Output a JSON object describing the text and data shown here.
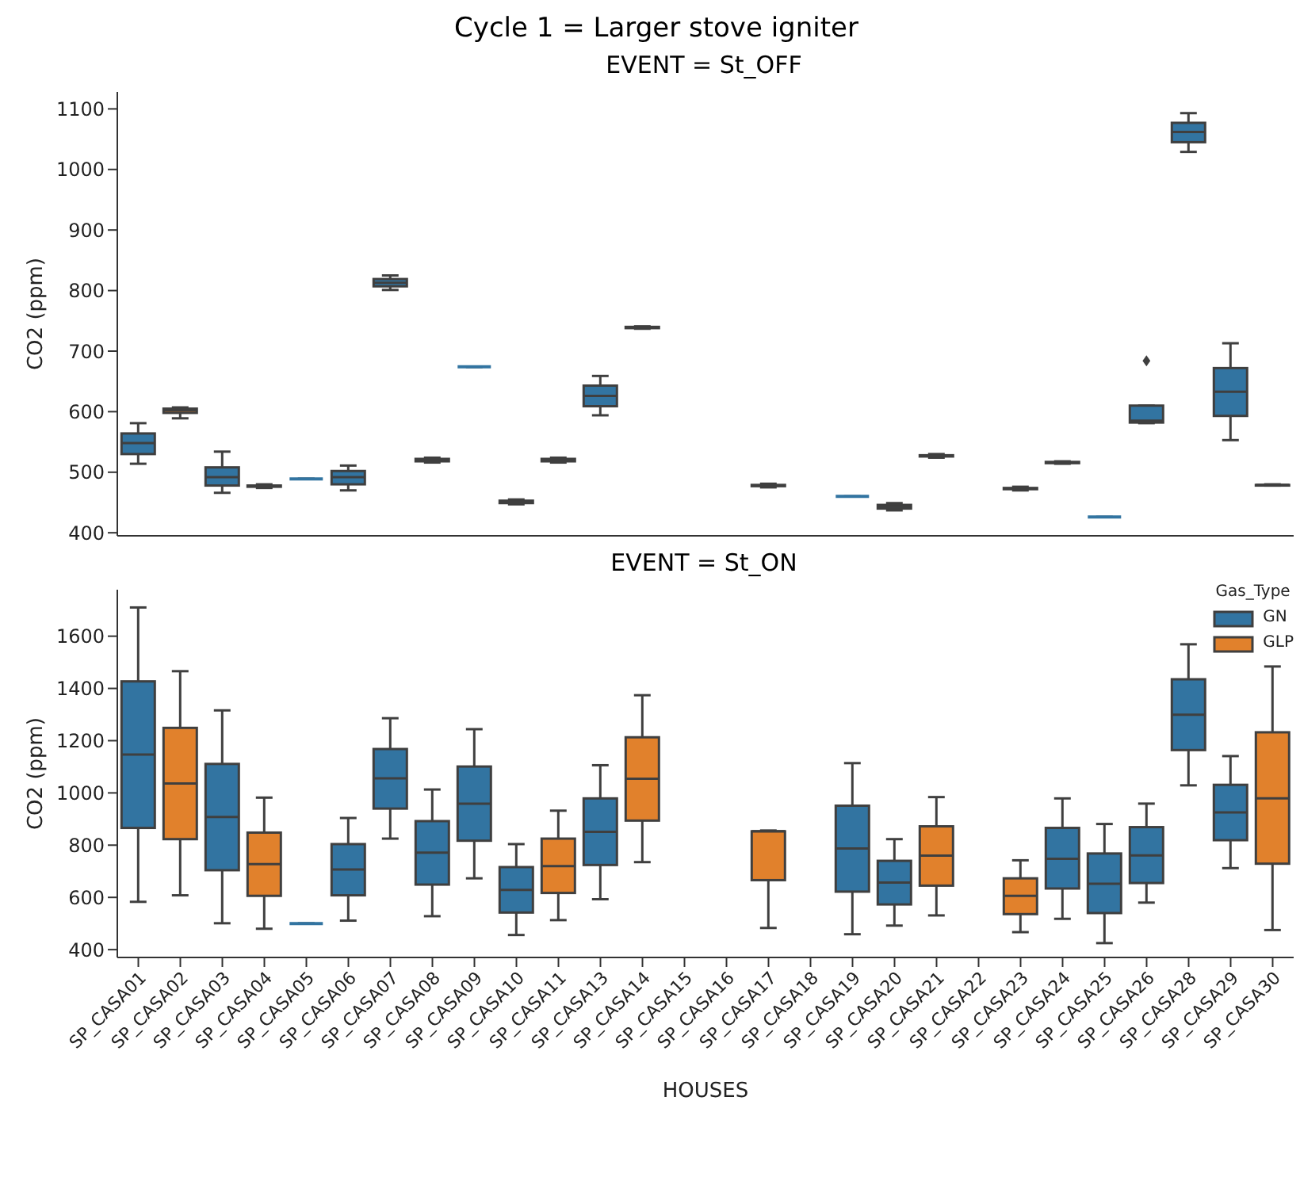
{
  "chart_data": [
    {
      "type": "box",
      "title": "Cycle 1 = Larger stove igniter",
      "subtitle": "EVENT = St_OFF",
      "ylabel": "CO2 (ppm)",
      "categories": [
        null,
        null,
        null,
        null,
        null,
        null,
        null,
        null,
        null,
        null,
        null,
        null,
        null,
        null,
        null,
        null,
        null,
        null,
        null,
        null,
        null,
        null,
        null,
        null,
        null,
        null,
        null,
        null
      ],
      "ylim": [
        395,
        1128
      ],
      "yticks": [
        400,
        500,
        600,
        700,
        800,
        900,
        1000,
        1100
      ],
      "tick_labels": "y",
      "legend": false,
      "grid": false,
      "marker": "diamond",
      "series": [
        {
          "color": "#3274a1",
          "boxes": [
            {
              "low": 514,
              "q1": 530,
              "median": 548,
              "q3": 564,
              "high": 581
            },
            null,
            {
              "low": 466,
              "q1": 478,
              "median": 492,
              "q3": 508,
              "high": 534
            },
            null,
            {
              "low": 489,
              "q1": 489,
              "median": 489,
              "q3": 489,
              "high": 489
            },
            {
              "low": 470,
              "q1": 480,
              "median": 492,
              "q3": 502,
              "high": 511
            },
            {
              "low": 801,
              "q1": 807,
              "median": 813,
              "q3": 819,
              "high": 825
            },
            {
              "low": 516,
              "q1": 518,
              "median": 520,
              "q3": 522,
              "high": 524
            },
            {
              "low": 674,
              "q1": 674,
              "median": 674,
              "q3": 674,
              "high": 674
            },
            {
              "low": 447,
              "q1": 449,
              "median": 451,
              "q3": 453,
              "high": 455
            },
            null,
            {
              "low": 594,
              "q1": 609,
              "median": 626,
              "q3": 643,
              "high": 659
            },
            null,
            null,
            null,
            null,
            null,
            {
              "low": 460,
              "q1": 460,
              "median": 460,
              "q3": 460,
              "high": 460
            },
            {
              "low": 437,
              "q1": 440,
              "median": 443,
              "q3": 446,
              "high": 449
            },
            null,
            null,
            null,
            {
              "low": 514,
              "q1": 515,
              "median": 516,
              "q3": 517,
              "high": 518
            },
            {
              "low": 426,
              "q1": 426,
              "median": 426,
              "q3": 426,
              "high": 426
            },
            {
              "low": 581,
              "q1": 582,
              "median": 585,
              "q3": 610,
              "high": 610,
              "outliers": [
                684
              ]
            },
            {
              "low": 1029,
              "q1": 1045,
              "median": 1062,
              "q3": 1077,
              "high": 1093
            },
            {
              "low": 553,
              "q1": 593,
              "median": 633,
              "q3": 672,
              "high": 713
            },
            null
          ]
        },
        {
          "color": "#e1812c",
          "boxes": [
            null,
            {
              "low": 589,
              "q1": 598,
              "median": 602,
              "q3": 605,
              "high": 607
            },
            null,
            {
              "low": 474,
              "q1": 476,
              "median": 477,
              "q3": 478,
              "high": 480
            },
            null,
            null,
            null,
            null,
            null,
            null,
            {
              "low": 516,
              "q1": 518,
              "median": 520,
              "q3": 522,
              "high": 524
            },
            null,
            {
              "low": 737,
              "q1": 738,
              "median": 739,
              "q3": 740,
              "high": 741
            },
            null,
            null,
            {
              "low": 475,
              "q1": 477,
              "median": 478,
              "q3": 479,
              "high": 481
            },
            null,
            null,
            null,
            {
              "low": 524,
              "q1": 526,
              "median": 527,
              "q3": 528,
              "high": 530
            },
            null,
            {
              "low": 470,
              "q1": 472,
              "median": 473,
              "q3": 474,
              "high": 476
            },
            null,
            null,
            null,
            null,
            null,
            {
              "low": 478,
              "q1": 478,
              "median": 479,
              "q3": 479,
              "high": 480
            }
          ]
        }
      ]
    },
    {
      "type": "box",
      "title": "EVENT = St_ON",
      "xlabel": "HOUSES",
      "ylabel": "CO2 (ppm)",
      "legend_title": "Gas_Type",
      "categories": [
        "SP_CASA01",
        "SP_CASA02",
        "SP_CASA03",
        "SP_CASA04",
        "SP_CASA05",
        "SP_CASA06",
        "SP_CASA07",
        "SP_CASA08",
        "SP_CASA09",
        "SP_CASA10",
        "SP_CASA11",
        "SP_CASA13",
        "SP_CASA14",
        "SP_CASA15",
        "SP_CASA16",
        "SP_CASA17",
        "SP_CASA18",
        "SP_CASA19",
        "SP_CASA20",
        "SP_CASA21",
        "SP_CASA22",
        "SP_CASA23",
        "SP_CASA24",
        "SP_CASA25",
        "SP_CASA26",
        "SP_CASA28",
        "SP_CASA29",
        "SP_CASA30"
      ],
      "ylim": [
        370,
        1778
      ],
      "yticks": [
        400,
        600,
        800,
        1000,
        1200,
        1400,
        1600
      ],
      "legend": "top right",
      "grid": false,
      "series": [
        {
          "name": "GN",
          "color": "#3274a1",
          "boxes": [
            {
              "low": 583,
              "q1": 866,
              "median": 1147,
              "q3": 1427,
              "high": 1710
            },
            null,
            {
              "low": 501,
              "q1": 704,
              "median": 908,
              "q3": 1111,
              "high": 1316
            },
            null,
            {
              "low": 500,
              "q1": 500,
              "median": 500,
              "q3": 500,
              "high": 500
            },
            {
              "low": 511,
              "q1": 608,
              "median": 707,
              "q3": 804,
              "high": 904
            },
            {
              "low": 825,
              "q1": 940,
              "median": 1056,
              "q3": 1168,
              "high": 1286
            },
            {
              "low": 528,
              "q1": 649,
              "median": 771,
              "q3": 892,
              "high": 1013
            },
            {
              "low": 673,
              "q1": 817,
              "median": 959,
              "q3": 1101,
              "high": 1244
            },
            {
              "low": 456,
              "q1": 542,
              "median": 629,
              "q3": 716,
              "high": 804
            },
            null,
            {
              "low": 593,
              "q1": 724,
              "median": 851,
              "q3": 979,
              "high": 1106
            },
            null,
            null,
            null,
            null,
            null,
            {
              "low": 459,
              "q1": 622,
              "median": 787,
              "q3": 951,
              "high": 1114
            },
            {
              "low": 492,
              "q1": 573,
              "median": 657,
              "q3": 740,
              "high": 823
            },
            null,
            null,
            null,
            {
              "low": 518,
              "q1": 634,
              "median": 748,
              "q3": 866,
              "high": 979
            },
            {
              "low": 425,
              "q1": 540,
              "median": 652,
              "q3": 768,
              "high": 881
            },
            {
              "low": 580,
              "q1": 655,
              "median": 761,
              "q3": 869,
              "high": 959
            },
            {
              "low": 1029,
              "q1": 1164,
              "median": 1299,
              "q3": 1435,
              "high": 1569
            },
            {
              "low": 712,
              "q1": 819,
              "median": 925,
              "q3": 1031,
              "high": 1141
            },
            null
          ]
        },
        {
          "name": "GLP",
          "color": "#e1812c",
          "boxes": [
            null,
            {
              "low": 608,
              "q1": 823,
              "median": 1036,
              "q3": 1249,
              "high": 1466
            },
            null,
            {
              "low": 480,
              "q1": 606,
              "median": 727,
              "q3": 848,
              "high": 982
            },
            null,
            null,
            null,
            null,
            null,
            null,
            {
              "low": 513,
              "q1": 617,
              "median": 720,
              "q3": 825,
              "high": 932
            },
            null,
            {
              "low": 735,
              "q1": 894,
              "median": 1054,
              "q3": 1213,
              "high": 1374
            },
            null,
            null,
            {
              "low": 483,
              "q1": 666,
              "median": 853,
              "q3": 853,
              "high": 856
            },
            null,
            null,
            null,
            {
              "low": 531,
              "q1": 645,
              "median": 760,
              "q3": 872,
              "high": 984
            },
            null,
            {
              "low": 467,
              "q1": 536,
              "median": 606,
              "q3": 673,
              "high": 742
            },
            null,
            null,
            null,
            null,
            null,
            {
              "low": 475,
              "q1": 729,
              "median": 979,
              "q3": 1232,
              "high": 1484
            }
          ]
        }
      ]
    }
  ]
}
